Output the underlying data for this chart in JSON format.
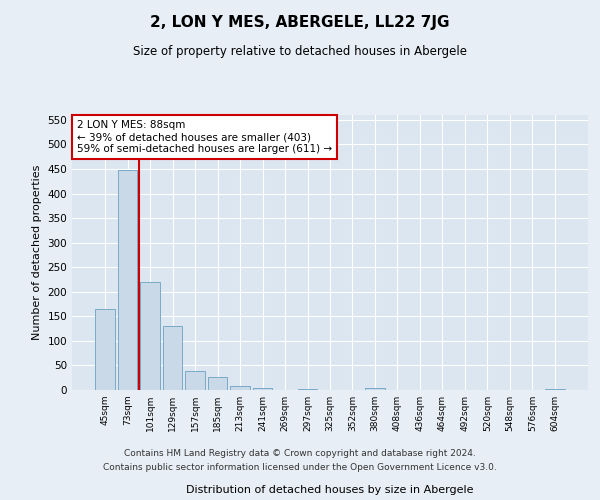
{
  "title": "2, LON Y MES, ABERGELE, LL22 7JG",
  "subtitle": "Size of property relative to detached houses in Abergele",
  "xlabel": "Distribution of detached houses by size in Abergele",
  "ylabel": "Number of detached properties",
  "bar_labels": [
    "45sqm",
    "73sqm",
    "101sqm",
    "129sqm",
    "157sqm",
    "185sqm",
    "213sqm",
    "241sqm",
    "269sqm",
    "297sqm",
    "325sqm",
    "352sqm",
    "380sqm",
    "408sqm",
    "436sqm",
    "464sqm",
    "492sqm",
    "520sqm",
    "548sqm",
    "576sqm",
    "604sqm"
  ],
  "bar_values": [
    165,
    447,
    220,
    130,
    38,
    26,
    9,
    5,
    0,
    3,
    0,
    0,
    4,
    0,
    0,
    0,
    0,
    0,
    0,
    0,
    3
  ],
  "bar_color": "#c9d9e8",
  "bar_edgecolor": "#7aaac8",
  "ylim": [
    0,
    560
  ],
  "yticks": [
    0,
    50,
    100,
    150,
    200,
    250,
    300,
    350,
    400,
    450,
    500,
    550
  ],
  "vline_x": 1.5,
  "vline_color": "#cc0000",
  "annotation_text": "2 LON Y MES: 88sqm\n← 39% of detached houses are smaller (403)\n59% of semi-detached houses are larger (611) →",
  "annotation_box_facecolor": "#ffffff",
  "annotation_box_edgecolor": "#cc0000",
  "footer_line1": "Contains HM Land Registry data © Crown copyright and database right 2024.",
  "footer_line2": "Contains public sector information licensed under the Open Government Licence v3.0.",
  "bg_color": "#e8eef5",
  "plot_bg_color": "#dce6f0"
}
